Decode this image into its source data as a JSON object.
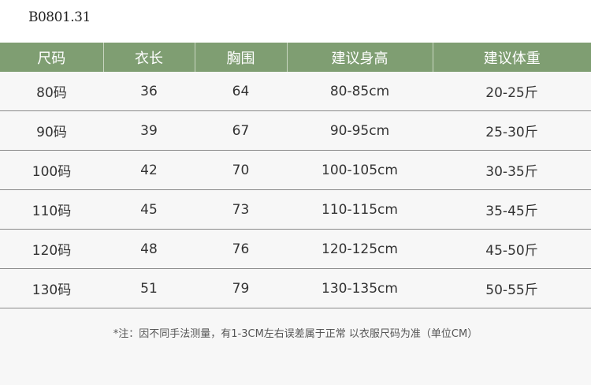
{
  "product_code": "B0801.31",
  "table": {
    "headers": [
      "尺码",
      "衣长",
      "胸围",
      "建议身高",
      "建议体重"
    ],
    "rows": [
      [
        "80码",
        "36",
        "64",
        "80-85cm",
        "20-25斤"
      ],
      [
        "90码",
        "39",
        "67",
        "90-95cm",
        "25-30斤"
      ],
      [
        "100码",
        "42",
        "70",
        "100-105cm",
        "30-35斤"
      ],
      [
        "110码",
        "45",
        "73",
        "110-115cm",
        "35-45斤"
      ],
      [
        "120码",
        "48",
        "76",
        "120-125cm",
        "45-50斤"
      ],
      [
        "130码",
        "51",
        "79",
        "130-135cm",
        "50-55斤"
      ]
    ]
  },
  "note": "*注：因不同手法测量，有1-3CM左右误差属于正常  以衣服尺码为准（单位CM）",
  "colors": {
    "header_bg": "#7f9e72",
    "row_bg": "#f7f7f7"
  }
}
